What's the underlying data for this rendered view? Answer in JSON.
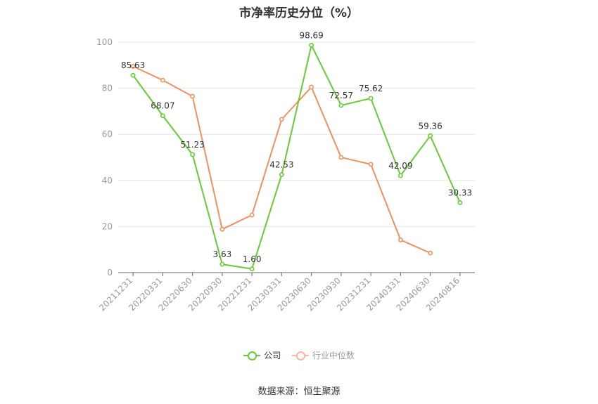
{
  "title": "市净率历史分位（%）",
  "source": "数据来源：恒生聚源",
  "chart_data": {
    "type": "line",
    "categories": [
      "20211231",
      "20220331",
      "20220630",
      "20220930",
      "20221231",
      "20230331",
      "20230630",
      "20230930",
      "20231231",
      "20240331",
      "20240630",
      "20240816"
    ],
    "ylim": [
      0,
      100
    ],
    "yticks": [
      0,
      20,
      40,
      60,
      80,
      100
    ],
    "grid": true,
    "legend_position": "bottom",
    "series": [
      {
        "name": "公司",
        "color": "#66cc33",
        "values": [
          85.63,
          68.07,
          51.23,
          3.63,
          1.6,
          42.53,
          98.69,
          72.57,
          75.62,
          42.09,
          59.36,
          30.33
        ],
        "labels": [
          "85.63",
          "68.07",
          "51.23",
          "3.63",
          "1.60",
          "42.53",
          "98.69",
          "72.57",
          "75.62",
          "42.09",
          "59.36",
          "30.33"
        ],
        "show_labels": true
      },
      {
        "name": "行业中位数",
        "color": "#f0905f",
        "values": [
          89.5,
          83.5,
          76.5,
          18.8,
          25.0,
          66.5,
          80.5,
          50.0,
          47.0,
          14.2,
          8.5,
          null
        ],
        "show_labels": false
      }
    ]
  }
}
